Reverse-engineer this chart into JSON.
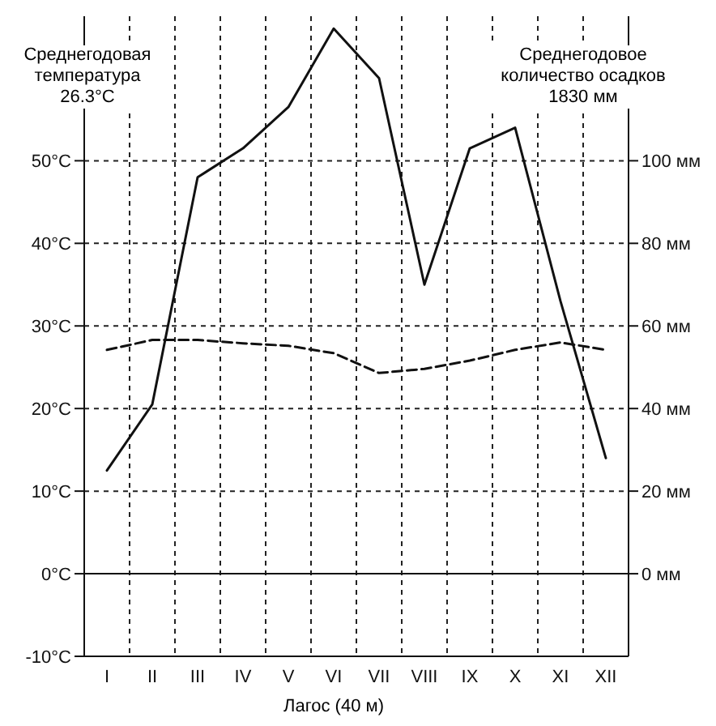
{
  "chart_data": {
    "type": "line",
    "categories": [
      "I",
      "II",
      "III",
      "IV",
      "V",
      "VI",
      "VII",
      "VIII",
      "IX",
      "X",
      "XI",
      "XII"
    ],
    "series": [
      {
        "color": "#111111",
        "line_style": "dashed",
        "values": [
          27.1,
          28.3,
          28.3,
          27.9,
          27.6,
          26.7,
          24.3,
          24.8,
          25.8,
          27.1,
          28.0,
          27.1
        ]
      },
      {
        "axis": "y2",
        "color": "#111111",
        "line_style": "solid",
        "values": [
          25,
          41,
          96,
          103,
          113,
          132,
          120,
          70,
          103,
          108,
          66,
          28
        ]
      }
    ],
    "ylim": [
      -10,
      67.5
    ],
    "yticks": [
      {
        "value": -10,
        "label": "-10°C"
      },
      {
        "value": 0,
        "label": "0°C"
      },
      {
        "value": 10,
        "label": "10°C"
      },
      {
        "value": 20,
        "label": "20°C"
      },
      {
        "value": 30,
        "label": "30°C"
      },
      {
        "value": 40,
        "label": "40°C"
      },
      {
        "value": 50,
        "label": "50°C"
      }
    ],
    "y2lim": [
      -20,
      135
    ],
    "y2ticks": [
      {
        "value": 0,
        "label": "0 мм"
      },
      {
        "value": 20,
        "label": "20 мм"
      },
      {
        "value": 40,
        "label": "40 мм"
      },
      {
        "value": 60,
        "label": "60 мм"
      },
      {
        "value": 80,
        "label": "80 мм"
      },
      {
        "value": 100,
        "label": "100 мм"
      }
    ],
    "ref_lines": [
      {
        "axis": "y",
        "value": 0,
        "line_style": "solid",
        "color": "#111111"
      }
    ],
    "grid": true,
    "marker": "none",
    "legend": false,
    "annotations": [
      "Среднегодовая температура 26.3°C",
      "Среднегодовое количество осадков 1830 мм",
      "Лагос (40 м)"
    ]
  }
}
